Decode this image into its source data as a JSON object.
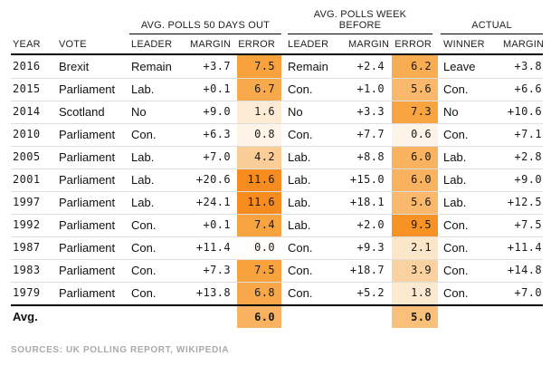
{
  "chart_data": {
    "type": "table",
    "group_headers": [
      "AVG. POLLS 50 DAYS OUT",
      "AVG. POLLS WEEK BEFORE",
      "ACTUAL"
    ],
    "columns": [
      "YEAR",
      "VOTE",
      "LEADER",
      "MARGIN",
      "ERROR",
      "LEADER",
      "MARGIN",
      "ERROR",
      "WINNER",
      "MARGIN"
    ],
    "rows": [
      {
        "year": "2016",
        "vote": "Brexit",
        "p50_leader": "Remain",
        "p50_margin": "+3.7",
        "p50_error": "7.5",
        "p50_shade": "#f7a23d",
        "wk_leader": "Remain",
        "wk_margin": "+2.4",
        "wk_error": "6.2",
        "wk_shade": "#f8ad53",
        "winner": "Leave",
        "actual_margin": "+3.8"
      },
      {
        "year": "2015",
        "vote": "Parliament",
        "p50_leader": "Lab.",
        "p50_margin": "+0.1",
        "p50_error": "6.7",
        "p50_shade": "#f8a94c",
        "wk_leader": "Con.",
        "wk_margin": "+1.0",
        "wk_error": "5.6",
        "wk_shade": "#f9b86c",
        "winner": "Con.",
        "actual_margin": "+6.6"
      },
      {
        "year": "2014",
        "vote": "Scotland",
        "p50_leader": "No",
        "p50_margin": "+9.0",
        "p50_error": "1.6",
        "p50_shade": "#fcebd4",
        "wk_leader": "No",
        "wk_margin": "+3.3",
        "wk_error": "7.3",
        "wk_shade": "#f7a441",
        "winner": "No",
        "actual_margin": "+10.6"
      },
      {
        "year": "2010",
        "vote": "Parliament",
        "p50_leader": "Con.",
        "p50_margin": "+6.3",
        "p50_error": "0.8",
        "p50_shade": "#fdf3e6",
        "wk_leader": "Con.",
        "wk_margin": "+7.7",
        "wk_error": "0.6",
        "wk_shade": "#fdf4e9",
        "winner": "Con.",
        "actual_margin": "+7.1"
      },
      {
        "year": "2005",
        "vote": "Parliament",
        "p50_leader": "Lab.",
        "p50_margin": "+7.0",
        "p50_error": "4.2",
        "p50_shade": "#facd96",
        "wk_leader": "Lab.",
        "wk_margin": "+8.8",
        "wk_error": "6.0",
        "wk_shade": "#f8b260",
        "winner": "Lab.",
        "actual_margin": "+2.8"
      },
      {
        "year": "2001",
        "vote": "Parliament",
        "p50_leader": "Lab.",
        "p50_margin": "+20.6",
        "p50_error": "11.6",
        "p50_shade": "#f68b1f",
        "wk_leader": "Lab.",
        "wk_margin": "+15.0",
        "wk_error": "6.0",
        "wk_shade": "#f8b260",
        "winner": "Lab.",
        "actual_margin": "+9.0"
      },
      {
        "year": "1997",
        "vote": "Parliament",
        "p50_leader": "Lab.",
        "p50_margin": "+24.1",
        "p50_error": "11.6",
        "p50_shade": "#f68b1f",
        "wk_leader": "Lab.",
        "wk_margin": "+18.1",
        "wk_error": "5.6",
        "wk_shade": "#f9b86c",
        "winner": "Lab.",
        "actual_margin": "+12.5"
      },
      {
        "year": "1992",
        "vote": "Parliament",
        "p50_leader": "Con.",
        "p50_margin": "+0.1",
        "p50_error": "7.4",
        "p50_shade": "#f7a33f",
        "wk_leader": "Lab.",
        "wk_margin": "+2.0",
        "wk_error": "9.5",
        "wk_shade": "#f79225",
        "winner": "Con.",
        "actual_margin": "+7.5"
      },
      {
        "year": "1987",
        "vote": "Parliament",
        "p50_leader": "Con.",
        "p50_margin": "+11.4",
        "p50_error": "0.0",
        "p50_shade": "#fffefd",
        "wk_leader": "Con.",
        "wk_margin": "+9.3",
        "wk_error": "2.1",
        "wk_shade": "#fce6c9",
        "winner": "Con.",
        "actual_margin": "+11.4"
      },
      {
        "year": "1983",
        "vote": "Parliament",
        "p50_leader": "Con.",
        "p50_margin": "+7.3",
        "p50_error": "7.5",
        "p50_shade": "#f7a23d",
        "wk_leader": "Con.",
        "wk_margin": "+18.7",
        "wk_error": "3.9",
        "wk_shade": "#fad2a0",
        "winner": "Con.",
        "actual_margin": "+14.8"
      },
      {
        "year": "1979",
        "vote": "Parliament",
        "p50_leader": "Con.",
        "p50_margin": "+13.8",
        "p50_error": "6.8",
        "p50_shade": "#f8a84a",
        "wk_leader": "Con.",
        "wk_margin": "+5.2",
        "wk_error": "1.8",
        "wk_shade": "#fce9d0",
        "winner": "Con.",
        "actual_margin": "+7.0"
      }
    ],
    "avg_row": {
      "label": "Avg.",
      "p50_error": "6.0",
      "p50_shade": "#f8b260",
      "wk_error": "5.0",
      "wk_shade": "#f9c07b"
    },
    "palette": {
      "error_min": "#ffffff",
      "error_max": "#f68b1f"
    }
  },
  "footer": {
    "sources": "SOURCES: UK POLLING REPORT, WIKIPEDIA"
  }
}
